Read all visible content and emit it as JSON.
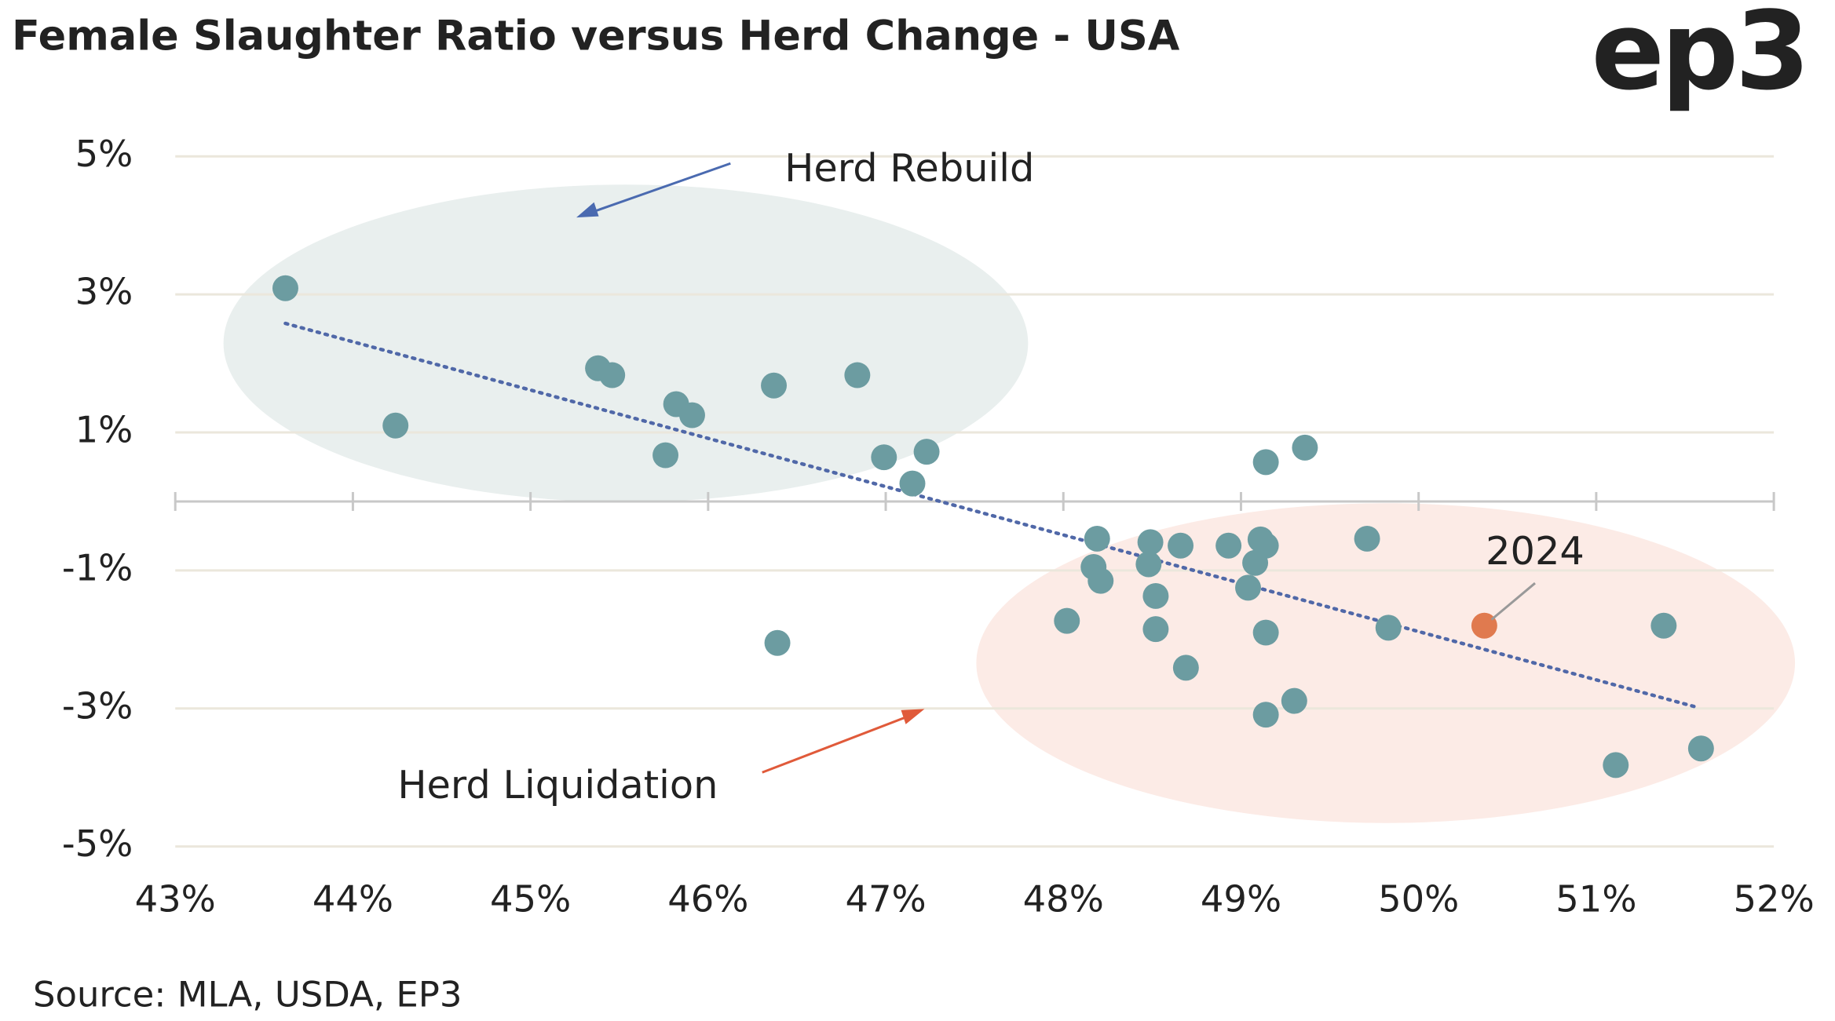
{
  "chart_data": {
    "type": "scatter",
    "title": "Female Slaughter Ratio versus Herd Change - USA",
    "logo": "ep3",
    "source": "Source: MLA, USDA, EP3",
    "annotations": [
      "Herd Rebuild",
      "Herd Liquidation",
      "2024"
    ],
    "xlim": [
      43,
      52
    ],
    "xticks": [
      {
        "value": 43,
        "label": "43%"
      },
      {
        "value": 44,
        "label": "44%"
      },
      {
        "value": 45,
        "label": "45%"
      },
      {
        "value": 46,
        "label": "46%"
      },
      {
        "value": 47,
        "label": "47%"
      },
      {
        "value": 48,
        "label": "48%"
      },
      {
        "value": 49,
        "label": "49%"
      },
      {
        "value": 50,
        "label": "50%"
      },
      {
        "value": 51,
        "label": "51%"
      },
      {
        "value": 52,
        "label": "52%"
      }
    ],
    "ylim": [
      -5,
      5
    ],
    "yticks": [
      {
        "value": 5,
        "label": "5%"
      },
      {
        "value": 3,
        "label": "3%"
      },
      {
        "value": 1,
        "label": "1%"
      },
      {
        "value": -1,
        "label": "-1%"
      },
      {
        "value": -3,
        "label": "-3%"
      },
      {
        "value": -5,
        "label": "-5%"
      }
    ],
    "grid": true,
    "series": [
      {
        "color": "#6c9ca1",
        "x": [
          43.62,
          44.24,
          45.38,
          45.46,
          45.82,
          45.91,
          45.76,
          46.37,
          46.84,
          46.99,
          47.23,
          47.15,
          46.39,
          49.14,
          49.36,
          48.19,
          48.17,
          48.21,
          48.02,
          48.49,
          48.66,
          48.48,
          48.52,
          48.52,
          48.69,
          48.93,
          49.11,
          49.14,
          49.08,
          49.04,
          49.14,
          49.3,
          49.14,
          49.71,
          49.83,
          51.38,
          51.11,
          51.59
        ],
        "y": [
          3.09,
          1.1,
          1.93,
          1.83,
          1.41,
          1.25,
          0.67,
          1.68,
          1.83,
          0.64,
          0.72,
          0.26,
          -2.05,
          0.57,
          0.78,
          -0.54,
          -0.95,
          -1.15,
          -1.73,
          -0.59,
          -0.64,
          -0.91,
          -1.37,
          -1.85,
          -2.41,
          -0.64,
          -0.55,
          -0.64,
          -0.89,
          -1.25,
          -1.9,
          -2.89,
          -3.09,
          -0.54,
          -1.83,
          -1.8,
          -3.82,
          -3.58
        ]
      },
      {
        "color": "#e07a4f",
        "x": [
          50.37
        ],
        "y": [
          -1.8
        ]
      }
    ],
    "trendline": {
      "color": "#5068a8",
      "x": [
        43.62,
        51.55
      ],
      "y": [
        2.58,
        -2.97
      ]
    }
  }
}
